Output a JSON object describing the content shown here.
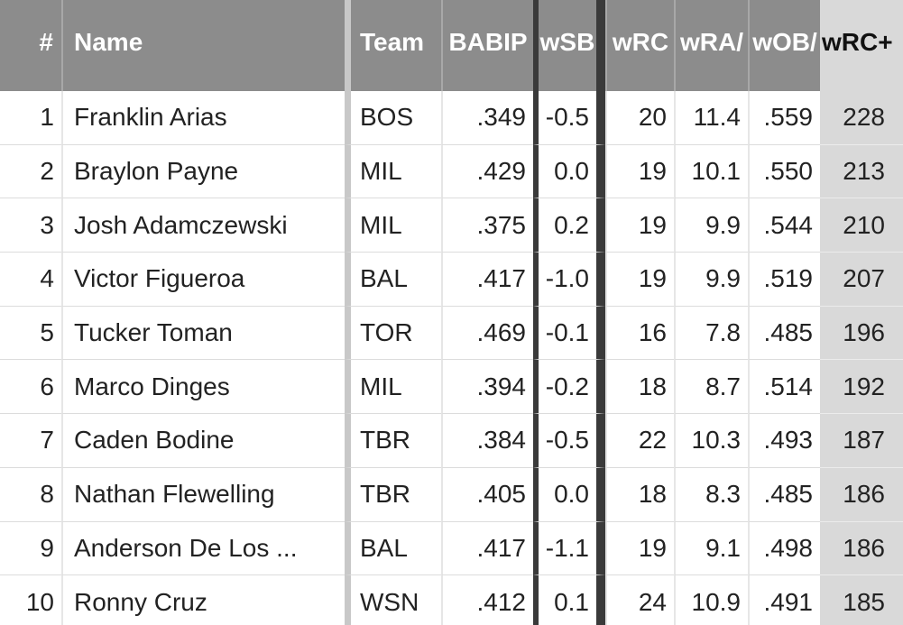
{
  "columns": {
    "rank": "#",
    "name": "Name",
    "team": "Team",
    "babip": "BABIP",
    "wsb": "wSB",
    "wrc": "wRC",
    "wraa": "wRA/",
    "woba": "wOB/",
    "wrcplus": "wRC+"
  },
  "rows": [
    {
      "rank": "1",
      "name": "Franklin Arias",
      "team": "BOS",
      "babip": ".349",
      "wsb": "-0.5",
      "wrc": "20",
      "wraa": "11.4",
      "woba": ".559",
      "wrcplus": "228"
    },
    {
      "rank": "2",
      "name": "Braylon Payne",
      "team": "MIL",
      "babip": ".429",
      "wsb": "0.0",
      "wrc": "19",
      "wraa": "10.1",
      "woba": ".550",
      "wrcplus": "213"
    },
    {
      "rank": "3",
      "name": "Josh Adamczewski",
      "team": "MIL",
      "babip": ".375",
      "wsb": "0.2",
      "wrc": "19",
      "wraa": "9.9",
      "woba": ".544",
      "wrcplus": "210"
    },
    {
      "rank": "4",
      "name": "Victor Figueroa",
      "team": "BAL",
      "babip": ".417",
      "wsb": "-1.0",
      "wrc": "19",
      "wraa": "9.9",
      "woba": ".519",
      "wrcplus": "207"
    },
    {
      "rank": "5",
      "name": "Tucker Toman",
      "team": "TOR",
      "babip": ".469",
      "wsb": "-0.1",
      "wrc": "16",
      "wraa": "7.8",
      "woba": ".485",
      "wrcplus": "196"
    },
    {
      "rank": "6",
      "name": "Marco Dinges",
      "team": "MIL",
      "babip": ".394",
      "wsb": "-0.2",
      "wrc": "18",
      "wraa": "8.7",
      "woba": ".514",
      "wrcplus": "192"
    },
    {
      "rank": "7",
      "name": "Caden Bodine",
      "team": "TBR",
      "babip": ".384",
      "wsb": "-0.5",
      "wrc": "22",
      "wraa": "10.3",
      "woba": ".493",
      "wrcplus": "187"
    },
    {
      "rank": "8",
      "name": "Nathan Flewelling",
      "team": "TBR",
      "babip": ".405",
      "wsb": "0.0",
      "wrc": "18",
      "wraa": "8.3",
      "woba": ".485",
      "wrcplus": "186"
    },
    {
      "rank": "9",
      "name": "Anderson De Los ...",
      "team": "BAL",
      "babip": ".417",
      "wsb": "-1.1",
      "wrc": "19",
      "wraa": "9.1",
      "woba": ".498",
      "wrcplus": "186"
    },
    {
      "rank": "10",
      "name": "Ronny Cruz",
      "team": "WSN",
      "babip": ".412",
      "wsb": "0.1",
      "wrc": "24",
      "wraa": "10.9",
      "woba": ".491",
      "wrcplus": "185"
    }
  ]
}
